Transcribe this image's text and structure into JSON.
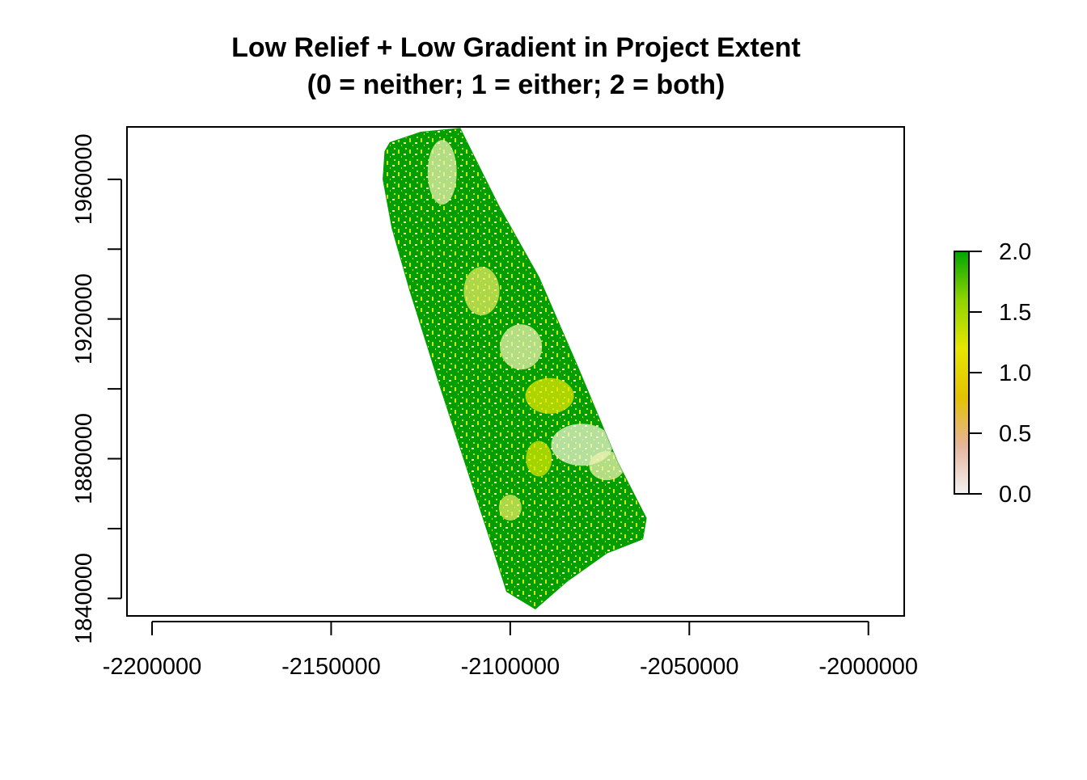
{
  "chart_data": {
    "type": "heatmap",
    "title": "Low Relief + Low Gradient in Project Extent",
    "subtitle": "(0 = neither; 1 = either; 2 = both)",
    "xlabel": "",
    "ylabel": "",
    "x_ticks": [
      "-2200000",
      "-2150000",
      "-2100000",
      "-2050000",
      "-2000000"
    ],
    "x_tick_values": [
      -2200000,
      -2150000,
      -2100000,
      -2050000,
      -2000000
    ],
    "y_ticks": [
      "1840000",
      "1880000",
      "1920000",
      "1960000"
    ],
    "y_tick_values": [
      1840000,
      1860000,
      1880000,
      1900000,
      1920000,
      1940000,
      1960000
    ],
    "y_labeled_values": [
      1840000,
      1880000,
      1920000,
      1960000
    ],
    "xlim": [
      -2207000,
      -1990000
    ],
    "ylim": [
      1835000,
      1975000
    ],
    "extent_polygon": [
      [
        -2133600,
        1970500
      ],
      [
        -2125000,
        1973500
      ],
      [
        -2114000,
        1974600
      ],
      [
        -2103000,
        1952000
      ],
      [
        -2092000,
        1932000
      ],
      [
        -2081000,
        1906000
      ],
      [
        -2070000,
        1879000
      ],
      [
        -2062000,
        1863000
      ],
      [
        -2063000,
        1857000
      ],
      [
        -2073000,
        1853000
      ],
      [
        -2084000,
        1845000
      ],
      [
        -2093000,
        1837000
      ],
      [
        -2101000,
        1842000
      ],
      [
        -2106000,
        1858000
      ],
      [
        -2113000,
        1880000
      ],
      [
        -2120000,
        1902000
      ],
      [
        -2128000,
        1928000
      ],
      [
        -2133000,
        1946000
      ],
      [
        -2135500,
        1960000
      ],
      [
        -2135000,
        1968000
      ]
    ],
    "value_range": [
      0,
      2
    ],
    "legend": {
      "position": "right",
      "ticks": [
        "2.0",
        "1.5",
        "1.0",
        "0.5",
        "0.0"
      ],
      "tick_values": [
        2.0,
        1.5,
        1.0,
        0.5,
        0.0
      ],
      "colors": [
        "#f2f2f2",
        "#e6b49a",
        "#e3c200",
        "#e6e600",
        "#8fd400",
        "#00a600"
      ]
    },
    "grid": false
  }
}
